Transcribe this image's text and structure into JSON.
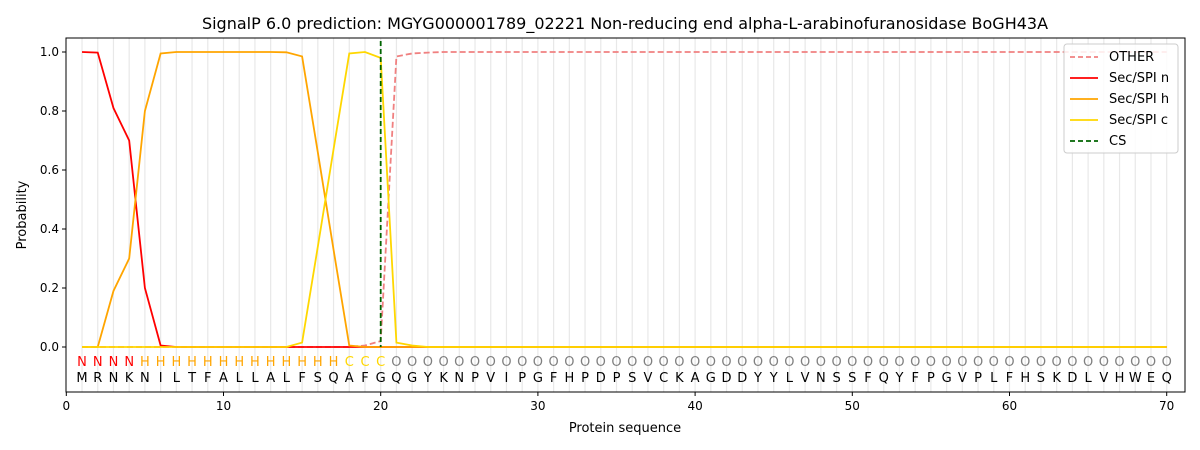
{
  "chart_data": {
    "type": "line",
    "title": "SignalP 6.0 prediction: MGYG000001789_02221 Non-reducing end alpha-L-arabinofuranosidase BoGH43A",
    "xlabel": "Protein sequence",
    "ylabel": "Probability",
    "xlim": [
      0,
      71
    ],
    "ylim": [
      -0.15,
      1.05
    ],
    "xticks": [
      0,
      10,
      20,
      30,
      40,
      50,
      60,
      70
    ],
    "yticks": [
      "0.0",
      "0.2",
      "0.4",
      "0.6",
      "0.8",
      "1.0"
    ],
    "legend_position": "top-right",
    "sequence": "MRNKNILTFALLALFSQAFGQGYKNPVIPGFHPDPSVCKAGDDYYLVNSSFQYFPGVPLFHSKDLVHWEQ",
    "labels": "NNNNHHHHHHHHHHHHHCCCOOOOOOOOOOOOOOOOOOOOOOOOOOOOOOOOOOOOOOOOOOOOOOOOOO",
    "label_colors": {
      "N": "#ff0000",
      "H": "#ffa500",
      "C": "#ffd700",
      "O": "#808080"
    },
    "cs_position": 20,
    "series": [
      {
        "name": "OTHER",
        "color": "#f08080",
        "dashed": true,
        "values": [
          0,
          0,
          0,
          0,
          0,
          0,
          0,
          0,
          0,
          0,
          0,
          0,
          0,
          0,
          0,
          0,
          0,
          0,
          0.005,
          0.02,
          0.985,
          0.995,
          0.998,
          1,
          1,
          1,
          1,
          1,
          1,
          1,
          1,
          1,
          1,
          1,
          1,
          1,
          1,
          1,
          1,
          1,
          1,
          1,
          1,
          1,
          1,
          1,
          1,
          1,
          1,
          1,
          1,
          1,
          1,
          1,
          1,
          1,
          1,
          1,
          1,
          1,
          1,
          1,
          1,
          1,
          1,
          1,
          1,
          1,
          1,
          1
        ]
      },
      {
        "name": "Sec/SPI n",
        "color": "#ff0000",
        "dashed": false,
        "values": [
          1.0,
          0.998,
          0.81,
          0.7,
          0.2,
          0.005,
          0,
          0,
          0,
          0,
          0,
          0,
          0,
          0,
          0,
          0,
          0,
          0,
          0,
          0,
          0,
          0,
          0,
          0,
          0,
          0,
          0,
          0,
          0,
          0,
          0,
          0,
          0,
          0,
          0,
          0,
          0,
          0,
          0,
          0,
          0,
          0,
          0,
          0,
          0,
          0,
          0,
          0,
          0,
          0,
          0,
          0,
          0,
          0,
          0,
          0,
          0,
          0,
          0,
          0,
          0,
          0,
          0,
          0,
          0,
          0,
          0,
          0,
          0,
          0
        ]
      },
      {
        "name": "Sec/SPI h",
        "color": "#ffa500",
        "dashed": false,
        "values": [
          0,
          0,
          0.19,
          0.3,
          0.8,
          0.995,
          1,
          1,
          1,
          1,
          1,
          1,
          1,
          0.999,
          0.985,
          0.66,
          0.33,
          0.005,
          0,
          0,
          0,
          0,
          0,
          0,
          0,
          0,
          0,
          0,
          0,
          0,
          0,
          0,
          0,
          0,
          0,
          0,
          0,
          0,
          0,
          0,
          0,
          0,
          0,
          0,
          0,
          0,
          0,
          0,
          0,
          0,
          0,
          0,
          0,
          0,
          0,
          0,
          0,
          0,
          0,
          0,
          0,
          0,
          0,
          0,
          0,
          0,
          0,
          0,
          0,
          0
        ]
      },
      {
        "name": "Sec/SPI c",
        "color": "#ffd700",
        "dashed": false,
        "values": [
          0,
          0,
          0,
          0,
          0,
          0,
          0,
          0,
          0,
          0,
          0,
          0,
          0,
          0,
          0.015,
          0.34,
          0.67,
          0.995,
          1.0,
          0.98,
          0.015,
          0.005,
          0,
          0,
          0,
          0,
          0,
          0,
          0,
          0,
          0,
          0,
          0,
          0,
          0,
          0,
          0,
          0,
          0,
          0,
          0,
          0,
          0,
          0,
          0,
          0,
          0,
          0,
          0,
          0,
          0,
          0,
          0,
          0,
          0,
          0,
          0,
          0,
          0,
          0,
          0,
          0,
          0,
          0,
          0,
          0,
          0,
          0,
          0,
          0
        ]
      },
      {
        "name": "CS",
        "color": "#006400",
        "dashed": true
      }
    ]
  }
}
